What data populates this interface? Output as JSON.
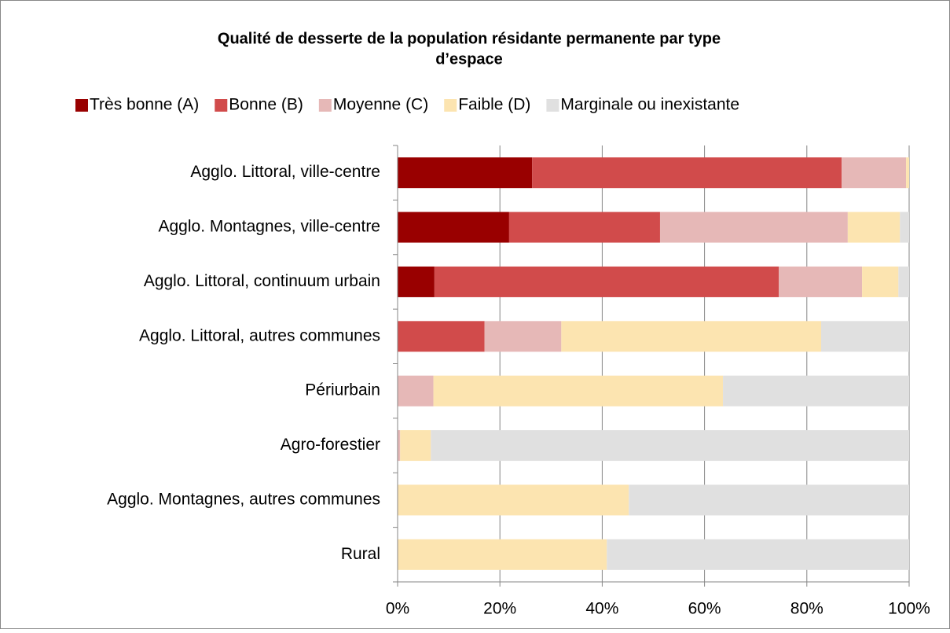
{
  "chart_data": {
    "type": "stacked-bar-horizontal",
    "title": "Qualité de desserte de la population résidante permanente par type d’espace",
    "categories": [
      "Agglo. Littoral, ville-centre",
      "Agglo. Montagnes, ville-centre",
      "Agglo. Littoral, continuum urbain",
      "Agglo. Littoral, autres communes",
      "Périurbain",
      "Agro-forestier",
      "Agglo. Montagnes, autres communes",
      "Rural"
    ],
    "series": [
      {
        "name": "Très bonne (A)",
        "color": "#990000",
        "values": [
          26.3,
          21.8,
          7.2,
          0,
          0,
          0,
          0,
          0
        ]
      },
      {
        "name": "Bonne (B)",
        "color": "#d14b4b",
        "values": [
          60.5,
          29.5,
          67.3,
          17,
          0,
          0,
          0,
          0
        ]
      },
      {
        "name": "Moyenne (C)",
        "color": "#e6b8b7",
        "values": [
          12.6,
          36.7,
          16.3,
          15,
          7,
          0.5,
          0,
          0
        ]
      },
      {
        "name": "Faible (D)",
        "color": "#fce4b0",
        "values": [
          0.6,
          10.2,
          7.1,
          50.8,
          56.6,
          6,
          45.2,
          40.9
        ]
      },
      {
        "name": "Marginale ou inexistante",
        "color": "#e0e0e0",
        "values": [
          0,
          1.8,
          2.1,
          17.2,
          36.4,
          93.5,
          54.8,
          59.1
        ]
      }
    ],
    "xlim": [
      0,
      100
    ],
    "xticks": [
      {
        "value": 0,
        "label": "0%"
      },
      {
        "value": 20,
        "label": "20%"
      },
      {
        "value": 40,
        "label": "40%"
      },
      {
        "value": 60,
        "label": "60%"
      },
      {
        "value": 80,
        "label": "80%"
      },
      {
        "value": 100,
        "label": "100%"
      }
    ],
    "grid": true,
    "legend": "top"
  }
}
